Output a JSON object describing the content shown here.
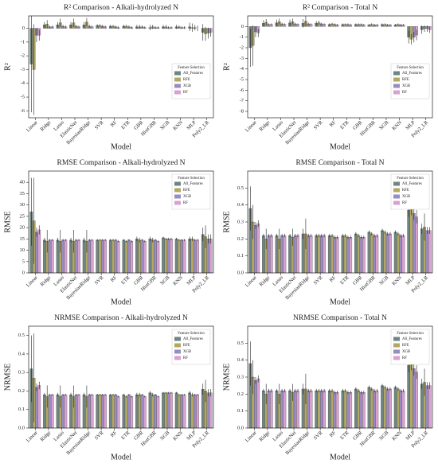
{
  "chart_data": [
    {
      "type": "bar",
      "title": "R² Comparison - Alkali-hydrolyzed N",
      "xlabel": "Model",
      "ylabel": "R²",
      "legend_title": "Feature Selection",
      "legend": "lower right",
      "categories": [
        "Linear",
        "Ridge",
        "Lasso",
        "ElasticNet",
        "BayesianRidge",
        "SVR",
        "RF",
        "ETR",
        "GBR",
        "HistGBR",
        "XGB",
        "KNN",
        "MLP",
        "Poly2_LR"
      ],
      "ylim": [
        -6.5,
        0.9
      ],
      "yticks": [
        -6,
        -5,
        -4,
        -3,
        -2,
        -1,
        0
      ],
      "series": [
        {
          "name": "All_Features",
          "color": "#6f8583",
          "values": [
            -2.6,
            0.25,
            0.25,
            0.25,
            0.25,
            0.2,
            0.15,
            0.15,
            0.1,
            0.05,
            0.1,
            0.1,
            0.1,
            -0.3
          ],
          "errors": [
            3.5,
            0.2,
            0.2,
            0.2,
            0.2,
            0.1,
            0.1,
            0.1,
            0.15,
            0.2,
            0.15,
            0.15,
            0.3,
            0.6
          ]
        },
        {
          "name": "RFE",
          "color": "#b3a862",
          "values": [
            -3.0,
            0.3,
            0.4,
            0.4,
            0.45,
            0.2,
            0.15,
            0.15,
            0.1,
            0.1,
            0.1,
            0.1,
            0.05,
            -0.4
          ],
          "errors": [
            3.3,
            0.3,
            0.3,
            0.3,
            0.3,
            0.1,
            0.1,
            0.1,
            0.15,
            0.15,
            0.15,
            0.1,
            0.3,
            0.5
          ]
        },
        {
          "name": "XGB",
          "color": "#9a8cc2",
          "values": [
            -0.5,
            0.1,
            0.15,
            0.15,
            0.15,
            0.15,
            0.1,
            0.1,
            0.1,
            0.05,
            0.05,
            0.05,
            0.05,
            -0.35
          ],
          "errors": [
            0.5,
            0.1,
            0.1,
            0.1,
            0.1,
            0.1,
            0.1,
            0.1,
            0.1,
            0.1,
            0.1,
            0.1,
            0.2,
            0.4
          ]
        },
        {
          "name": "RF",
          "color": "#d8a2cf",
          "values": [
            -0.5,
            0.1,
            0.1,
            0.1,
            0.1,
            0.1,
            0.05,
            0.05,
            0.05,
            0.05,
            0.05,
            0.05,
            0.0,
            -0.3
          ],
          "errors": [
            0.4,
            0.1,
            0.1,
            0.1,
            0.1,
            0.1,
            0.1,
            0.1,
            0.1,
            0.1,
            0.1,
            0.1,
            0.2,
            0.3
          ]
        }
      ]
    },
    {
      "type": "bar",
      "title": "R² Comparison - Total N",
      "xlabel": "Model",
      "ylabel": "R²",
      "legend_title": "Feature Selection",
      "legend": "lower right",
      "categories": [
        "Linear",
        "Ridge",
        "Lasso",
        "ElasticNet",
        "BayesianRidge",
        "SVR",
        "RF",
        "ETR",
        "GBR",
        "HistGBR",
        "XGB",
        "KNN",
        "MLP",
        "Poly2_LR"
      ],
      "ylim": [
        -8.6,
        1.0
      ],
      "yticks": [
        -8,
        -7,
        -6,
        -5,
        -4,
        -3,
        -2,
        -1,
        0
      ],
      "series": [
        {
          "name": "All_Features",
          "color": "#6f8583",
          "values": [
            -2.0,
            0.3,
            0.35,
            0.35,
            0.3,
            0.3,
            0.2,
            0.2,
            0.2,
            0.15,
            0.2,
            0.15,
            -1.0,
            -0.3
          ],
          "errors": [
            1.8,
            0.3,
            0.3,
            0.3,
            0.4,
            0.2,
            0.1,
            0.1,
            0.1,
            0.1,
            0.1,
            0.1,
            0.6,
            0.4
          ]
        },
        {
          "name": "RFE",
          "color": "#b3a862",
          "values": [
            -1.8,
            0.4,
            0.45,
            0.45,
            0.5,
            0.35,
            0.25,
            0.2,
            0.2,
            0.2,
            0.2,
            0.2,
            -1.2,
            -0.2
          ],
          "errors": [
            1.9,
            0.3,
            0.3,
            0.3,
            0.5,
            0.2,
            0.1,
            0.1,
            0.1,
            0.1,
            0.1,
            0.1,
            0.5,
            0.3
          ]
        },
        {
          "name": "XGB",
          "color": "#9a8cc2",
          "values": [
            -0.5,
            0.2,
            0.25,
            0.25,
            0.25,
            0.25,
            0.2,
            0.2,
            0.2,
            0.15,
            0.15,
            0.15,
            -1.0,
            -0.2
          ],
          "errors": [
            0.5,
            0.1,
            0.1,
            0.1,
            0.1,
            0.1,
            0.1,
            0.1,
            0.1,
            0.1,
            0.1,
            0.1,
            0.5,
            0.3
          ]
        },
        {
          "name": "RF",
          "color": "#d8a2cf",
          "values": [
            -0.6,
            0.2,
            0.2,
            0.2,
            0.2,
            0.2,
            0.15,
            0.15,
            0.15,
            0.15,
            0.15,
            0.15,
            -0.8,
            -0.3
          ],
          "errors": [
            0.4,
            0.1,
            0.1,
            0.1,
            0.1,
            0.1,
            0.1,
            0.1,
            0.1,
            0.1,
            0.1,
            0.1,
            0.5,
            0.3
          ]
        }
      ]
    },
    {
      "type": "bar",
      "title": "RMSE Comparison - Alkali-hydrolyzed N",
      "xlabel": "Model",
      "ylabel": "RMSE",
      "legend_title": "Feature Selection",
      "legend": "upper right",
      "categories": [
        "Linear",
        "Ridge",
        "Lasso",
        "ElasticNet",
        "BayesianRidge",
        "SVR",
        "RF",
        "ETR",
        "GBR",
        "HistGBR",
        "XGB",
        "KNN",
        "MLP",
        "Poly2_LR"
      ],
      "ylim": [
        0,
        45
      ],
      "yticks": [
        0,
        5,
        10,
        15,
        20,
        25,
        30,
        35,
        40
      ],
      "series": [
        {
          "name": "All_Features",
          "color": "#6f8583",
          "values": [
            27,
            14.5,
            14.5,
            14.5,
            14.5,
            14.5,
            14.5,
            14.5,
            15,
            15,
            15.5,
            15,
            15,
            17
          ],
          "errors": [
            15,
            1,
            1,
            1,
            1,
            0.5,
            0.5,
            0.5,
            1,
            1,
            0.5,
            0.5,
            1,
            3
          ]
        },
        {
          "name": "RFE",
          "color": "#b3a862",
          "values": [
            23,
            14,
            14,
            14,
            14,
            14.5,
            14.5,
            14,
            14.5,
            14.5,
            15,
            14.5,
            15,
            16
          ],
          "errors": [
            19,
            5,
            5,
            5,
            5,
            0.5,
            0.5,
            0.5,
            1,
            1,
            0.5,
            0.5,
            1,
            5
          ]
        },
        {
          "name": "XGB",
          "color": "#9a8cc2",
          "values": [
            18,
            14.5,
            14.5,
            14.5,
            14.5,
            14.5,
            14.5,
            14.5,
            14.5,
            14.5,
            15,
            14.5,
            14.5,
            15
          ],
          "errors": [
            2,
            0.5,
            0.5,
            0.5,
            0.5,
            0.5,
            0.5,
            0.5,
            0.5,
            0.5,
            0.5,
            0.5,
            0.5,
            2
          ]
        },
        {
          "name": "RF",
          "color": "#d8a2cf",
          "values": [
            19,
            14.5,
            14.5,
            14.5,
            14.5,
            14.5,
            14,
            14,
            14,
            14,
            15,
            14.5,
            14.5,
            15
          ],
          "errors": [
            2,
            0.5,
            0.5,
            0.5,
            0.5,
            0.5,
            0.5,
            0.5,
            0.5,
            0.5,
            0.5,
            0.5,
            0.5,
            2
          ]
        }
      ]
    },
    {
      "type": "bar",
      "title": "RMSE Comparison - Total N",
      "xlabel": "Model",
      "ylabel": "RMSE",
      "legend_title": "Feature Selection",
      "legend": "upper right",
      "categories": [
        "Linear",
        "Ridge",
        "Lasso",
        "ElasticNet",
        "BayesianRidge",
        "SVR",
        "RF",
        "ETR",
        "GBR",
        "HistGBR",
        "XGB",
        "KNN",
        "MLP",
        "Poly2_LR"
      ],
      "ylim": [
        0,
        0.6
      ],
      "yticks": [
        {
          "value": 0,
          "label": "0.0"
        },
        0.1,
        0.2,
        0.3,
        0.4,
        0.5
      ],
      "series": [
        {
          "name": "All_Features",
          "color": "#6f8583",
          "values": [
            0.38,
            0.22,
            0.22,
            0.22,
            0.23,
            0.22,
            0.22,
            0.22,
            0.23,
            0.24,
            0.25,
            0.24,
            0.37,
            0.26
          ],
          "errors": [
            0.13,
            0.01,
            0.01,
            0.01,
            0.03,
            0.01,
            0.01,
            0.01,
            0.01,
            0.01,
            0.01,
            0.01,
            0.04,
            0.03
          ]
        },
        {
          "name": "RFE",
          "color": "#b3a862",
          "values": [
            0.3,
            0.2,
            0.2,
            0.21,
            0.23,
            0.22,
            0.22,
            0.22,
            0.22,
            0.23,
            0.24,
            0.23,
            0.39,
            0.27
          ],
          "errors": [
            0.1,
            0.06,
            0.06,
            0.05,
            0.09,
            0.01,
            0.01,
            0.01,
            0.01,
            0.01,
            0.01,
            0.01,
            0.05,
            0.08
          ]
        },
        {
          "name": "XGB",
          "color": "#9a8cc2",
          "values": [
            0.28,
            0.22,
            0.22,
            0.22,
            0.22,
            0.22,
            0.21,
            0.21,
            0.21,
            0.22,
            0.23,
            0.22,
            0.35,
            0.25
          ],
          "errors": [
            0.02,
            0.01,
            0.01,
            0.01,
            0.01,
            0.01,
            0.01,
            0.01,
            0.01,
            0.01,
            0.01,
            0.01,
            0.04,
            0.02
          ]
        },
        {
          "name": "RF",
          "color": "#d8a2cf",
          "values": [
            0.29,
            0.22,
            0.22,
            0.22,
            0.22,
            0.22,
            0.21,
            0.21,
            0.21,
            0.22,
            0.23,
            0.22,
            0.33,
            0.25
          ],
          "errors": [
            0.02,
            0.01,
            0.01,
            0.01,
            0.01,
            0.01,
            0.01,
            0.01,
            0.01,
            0.01,
            0.01,
            0.01,
            0.04,
            0.02
          ]
        }
      ]
    },
    {
      "type": "bar",
      "title": "NRMSE Comparison - Alkali-hydrolyzed N",
      "xlabel": "Model",
      "ylabel": "NRMSE",
      "legend_title": "Feature Selection",
      "legend": "upper right",
      "categories": [
        "Linear",
        "Ridge",
        "Lasso",
        "ElasticNet",
        "BayesianRidge",
        "SVR",
        "RF",
        "ETR",
        "GBR",
        "HistGBR",
        "XGB",
        "KNN",
        "MLP",
        "Poly2_LR"
      ],
      "ylim": [
        0,
        0.55
      ],
      "yticks": [
        {
          "value": 0,
          "label": "0.0"
        },
        0.1,
        0.2,
        0.3,
        0.4,
        0.5
      ],
      "series": [
        {
          "name": "All_Features",
          "color": "#6f8583",
          "values": [
            0.32,
            0.18,
            0.18,
            0.18,
            0.18,
            0.18,
            0.18,
            0.18,
            0.18,
            0.19,
            0.19,
            0.19,
            0.19,
            0.21
          ],
          "errors": [
            0.18,
            0.01,
            0.01,
            0.01,
            0.01,
            0.005,
            0.005,
            0.005,
            0.01,
            0.01,
            0.005,
            0.005,
            0.01,
            0.03
          ]
        },
        {
          "name": "RFE",
          "color": "#b3a862",
          "values": [
            0.27,
            0.17,
            0.17,
            0.17,
            0.17,
            0.18,
            0.18,
            0.17,
            0.18,
            0.18,
            0.19,
            0.18,
            0.18,
            0.2
          ],
          "errors": [
            0.24,
            0.06,
            0.06,
            0.06,
            0.06,
            0.005,
            0.005,
            0.005,
            0.01,
            0.01,
            0.005,
            0.005,
            0.01,
            0.06
          ]
        },
        {
          "name": "XGB",
          "color": "#9a8cc2",
          "values": [
            0.22,
            0.18,
            0.18,
            0.18,
            0.18,
            0.18,
            0.18,
            0.18,
            0.18,
            0.18,
            0.19,
            0.18,
            0.18,
            0.19
          ],
          "errors": [
            0.02,
            0.005,
            0.005,
            0.005,
            0.005,
            0.005,
            0.005,
            0.005,
            0.005,
            0.005,
            0.005,
            0.005,
            0.005,
            0.02
          ]
        },
        {
          "name": "RF",
          "color": "#d8a2cf",
          "values": [
            0.23,
            0.18,
            0.18,
            0.18,
            0.18,
            0.18,
            0.17,
            0.17,
            0.17,
            0.17,
            0.19,
            0.18,
            0.18,
            0.19
          ],
          "errors": [
            0.02,
            0.005,
            0.005,
            0.005,
            0.005,
            0.005,
            0.005,
            0.005,
            0.005,
            0.005,
            0.005,
            0.005,
            0.005,
            0.02
          ]
        }
      ]
    },
    {
      "type": "bar",
      "title": "NRMSE Comparison - Total N",
      "xlabel": "Model",
      "ylabel": "NRMSE",
      "legend_title": "Feature Selection",
      "legend": "upper right",
      "categories": [
        "Linear",
        "Ridge",
        "Lasso",
        "ElasticNet",
        "BayesianRidge",
        "SVR",
        "RF",
        "ETR",
        "GBR",
        "HistGBR",
        "XGB",
        "KNN",
        "MLP",
        "Poly2_LR"
      ],
      "ylim": [
        0,
        0.6
      ],
      "yticks": [
        {
          "value": 0,
          "label": "0.0"
        },
        0.1,
        0.2,
        0.3,
        0.4,
        0.5
      ],
      "series": [
        {
          "name": "All_Features",
          "color": "#6f8583",
          "values": [
            0.38,
            0.22,
            0.22,
            0.22,
            0.23,
            0.22,
            0.22,
            0.22,
            0.23,
            0.24,
            0.25,
            0.24,
            0.37,
            0.26
          ],
          "errors": [
            0.13,
            0.01,
            0.01,
            0.01,
            0.03,
            0.01,
            0.01,
            0.01,
            0.01,
            0.01,
            0.01,
            0.01,
            0.04,
            0.03
          ]
        },
        {
          "name": "RFE",
          "color": "#b3a862",
          "values": [
            0.3,
            0.2,
            0.2,
            0.21,
            0.23,
            0.22,
            0.22,
            0.22,
            0.22,
            0.23,
            0.24,
            0.23,
            0.39,
            0.27
          ],
          "errors": [
            0.1,
            0.06,
            0.06,
            0.05,
            0.09,
            0.01,
            0.01,
            0.01,
            0.01,
            0.01,
            0.01,
            0.01,
            0.05,
            0.08
          ]
        },
        {
          "name": "XGB",
          "color": "#9a8cc2",
          "values": [
            0.28,
            0.22,
            0.22,
            0.22,
            0.22,
            0.22,
            0.21,
            0.21,
            0.21,
            0.22,
            0.23,
            0.22,
            0.35,
            0.25
          ],
          "errors": [
            0.02,
            0.01,
            0.01,
            0.01,
            0.01,
            0.01,
            0.01,
            0.01,
            0.01,
            0.01,
            0.01,
            0.01,
            0.04,
            0.02
          ]
        },
        {
          "name": "RF",
          "color": "#d8a2cf",
          "values": [
            0.29,
            0.22,
            0.22,
            0.22,
            0.22,
            0.22,
            0.21,
            0.21,
            0.21,
            0.22,
            0.23,
            0.22,
            0.33,
            0.25
          ],
          "errors": [
            0.02,
            0.01,
            0.01,
            0.01,
            0.01,
            0.01,
            0.01,
            0.01,
            0.01,
            0.01,
            0.01,
            0.01,
            0.04,
            0.02
          ]
        }
      ]
    }
  ]
}
